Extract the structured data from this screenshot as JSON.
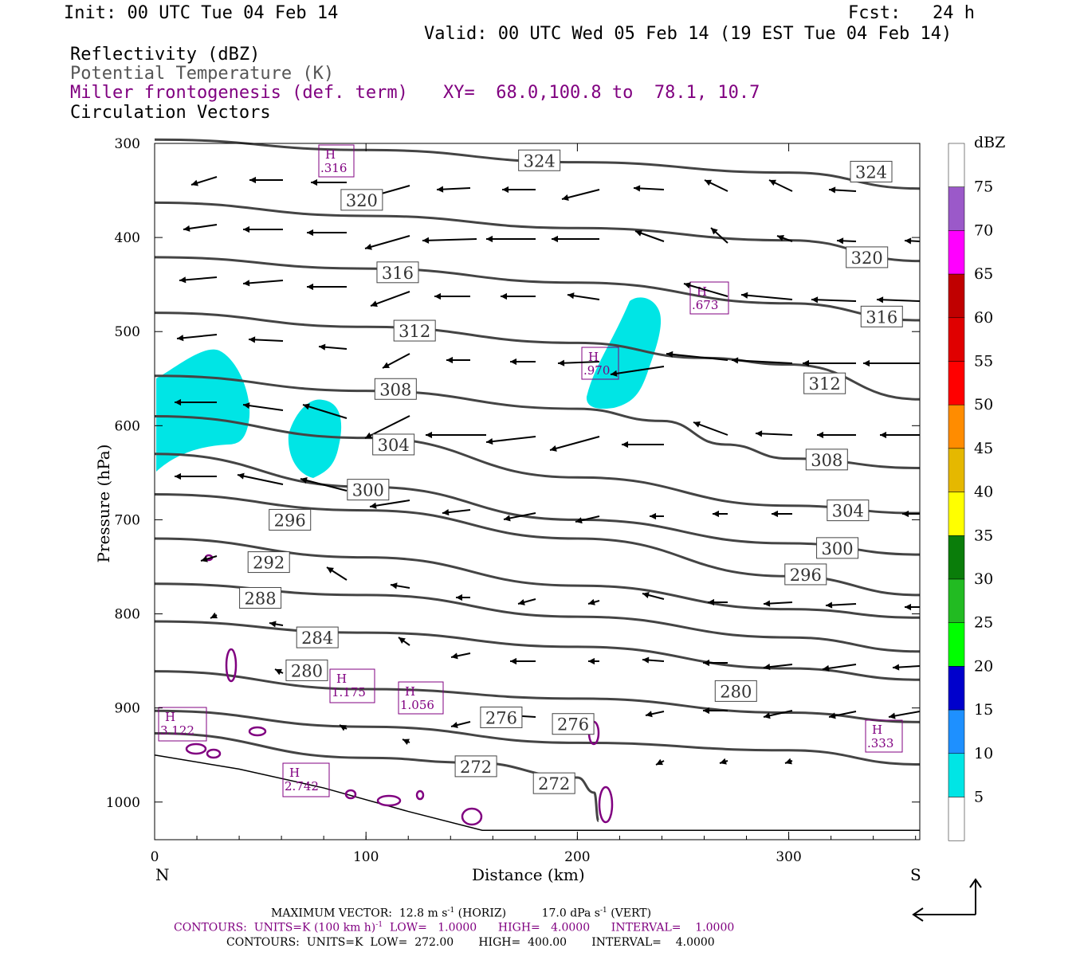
{
  "header": {
    "init": "Init: 00 UTC Tue 04 Feb 14",
    "fcst": "Fcst:   24 h",
    "valid": "Valid: 00 UTC Wed 05 Feb 14 (19 EST Tue 04 Feb 14)",
    "field1": "Reflectivity (dBZ)",
    "field2": "Potential Temperature (K)",
    "field3": "Miller frontogenesis (def. term)",
    "xy": "XY=  68.0,100.8 to  78.1, 10.7",
    "field4": "Circulation Vectors"
  },
  "colors": {
    "theta": "#444444",
    "fronto": "#800080",
    "reflect_5": "#00e5e5",
    "vectors": "#000000"
  },
  "footer": {
    "max_vector_a": "MAXIMUM VECTOR:  12.8 m s",
    "max_vector_b": "(HORIZ)",
    "max_vector_c": "17.0 dPa s",
    "max_vector_d": "(VERT)",
    "contours_fronto_a": "CONTOURS:  UNITS=K (100 km h)",
    "contours_fronto_b": "LOW=   1.0000      HIGH=   4.0000      INTERVAL=    1.0000",
    "contours_theta": "CONTOURS:  UNITS=K  LOW=  272.00       HIGH=  400.00       INTERVAL=    4.0000",
    "superscript": "-1"
  },
  "chart_data": {
    "type": "cross-section",
    "xlabel": "Distance (km)",
    "ylabel": "Pressure (hPa)",
    "xlim": [
      0,
      362
    ],
    "ylim": [
      1040,
      300
    ],
    "x_ticks": [
      0,
      100,
      200,
      300
    ],
    "y_ticks": [
      300,
      400,
      500,
      600,
      700,
      800,
      900,
      1000
    ],
    "x_end_labels": {
      "left": "N",
      "right": "S"
    },
    "colorbar": {
      "title": "dBZ",
      "levels": [
        75,
        70,
        65,
        60,
        55,
        50,
        45,
        40,
        35,
        30,
        25,
        20,
        15,
        10,
        5
      ],
      "colors": [
        "#ffffff",
        "#9b59c9",
        "#ff00ff",
        "#c00000",
        "#e00000",
        "#ff0000",
        "#ff8c00",
        "#e5b800",
        "#ffff00",
        "#0a7d0a",
        "#22bb22",
        "#00ff00",
        "#0000cc",
        "#1e90ff",
        "#00e5e5",
        "#ffffff"
      ]
    },
    "theta_contours": [
      {
        "label": "324",
        "points": [
          [
            0,
            296
          ],
          [
            100,
            307
          ],
          [
            200,
            320
          ],
          [
            300,
            331
          ],
          [
            362,
            348
          ]
        ],
        "labels_at": [
          [
            182,
            318
          ],
          [
            339,
            330
          ]
        ]
      },
      {
        "label": "320",
        "points": [
          [
            0,
            363
          ],
          [
            100,
            377
          ],
          [
            200,
            390
          ],
          [
            300,
            403
          ],
          [
            362,
            425
          ]
        ],
        "labels_at": [
          [
            98,
            360
          ],
          [
            337,
            421
          ]
        ]
      },
      {
        "label": "316",
        "points": [
          [
            0,
            421
          ],
          [
            100,
            433
          ],
          [
            200,
            448
          ],
          [
            300,
            470
          ],
          [
            362,
            488
          ]
        ],
        "labels_at": [
          [
            115,
            437
          ],
          [
            344,
            484
          ]
        ]
      },
      {
        "label": "312",
        "points": [
          [
            0,
            480
          ],
          [
            100,
            495
          ],
          [
            200,
            512
          ],
          [
            260,
            528
          ],
          [
            300,
            535
          ],
          [
            362,
            572
          ]
        ],
        "labels_at": [
          [
            123,
            499
          ],
          [
            317,
            555
          ]
        ]
      },
      {
        "label": "308",
        "points": [
          [
            0,
            547
          ],
          [
            100,
            563
          ],
          [
            200,
            582
          ],
          [
            240,
            595
          ],
          [
            270,
            620
          ],
          [
            300,
            635
          ],
          [
            362,
            645
          ]
        ],
        "labels_at": [
          [
            114,
            561
          ],
          [
            318,
            636
          ]
        ]
      },
      {
        "label": "304",
        "points": [
          [
            0,
            590
          ],
          [
            100,
            613
          ],
          [
            200,
            655
          ],
          [
            300,
            685
          ],
          [
            362,
            693
          ]
        ],
        "labels_at": [
          [
            113,
            620
          ],
          [
            328,
            690
          ]
        ]
      },
      {
        "label": "300",
        "points": [
          [
            0,
            630
          ],
          [
            100,
            665
          ],
          [
            200,
            700
          ],
          [
            300,
            725
          ],
          [
            362,
            737
          ]
        ],
        "labels_at": [
          [
            101,
            668
          ],
          [
            323,
            730
          ]
        ]
      },
      {
        "label": "296",
        "points": [
          [
            0,
            673
          ],
          [
            100,
            690
          ],
          [
            200,
            720
          ],
          [
            300,
            760
          ],
          [
            362,
            780
          ]
        ],
        "labels_at": [
          [
            64,
            700
          ],
          [
            308,
            758
          ]
        ]
      },
      {
        "label": "292",
        "points": [
          [
            0,
            720
          ],
          [
            100,
            740
          ],
          [
            200,
            770
          ],
          [
            300,
            795
          ],
          [
            362,
            804
          ]
        ],
        "labels_at": [
          [
            54,
            745
          ]
        ]
      },
      {
        "label": "288",
        "points": [
          [
            0,
            768
          ],
          [
            100,
            780
          ],
          [
            200,
            803
          ],
          [
            300,
            825
          ],
          [
            362,
            840
          ]
        ],
        "labels_at": [
          [
            50,
            783
          ]
        ]
      },
      {
        "label": "284",
        "points": [
          [
            0,
            808
          ],
          [
            100,
            820
          ],
          [
            200,
            835
          ],
          [
            300,
            858
          ],
          [
            362,
            870
          ]
        ],
        "labels_at": [
          [
            77,
            825
          ]
        ]
      },
      {
        "label": "280",
        "points": [
          [
            0,
            861
          ],
          [
            100,
            880
          ],
          [
            200,
            890
          ],
          [
            300,
            905
          ],
          [
            362,
            915
          ]
        ],
        "labels_at": [
          [
            72,
            860
          ],
          [
            275,
            882
          ]
        ]
      },
      {
        "label": "276",
        "points": [
          [
            0,
            903
          ],
          [
            100,
            920
          ],
          [
            200,
            937
          ],
          [
            300,
            945
          ],
          [
            362,
            960
          ]
        ],
        "labels_at": [
          [
            164,
            910
          ],
          [
            198,
            917
          ]
        ]
      },
      {
        "label": "272",
        "points": [
          [
            0,
            927
          ],
          [
            100,
            953
          ],
          [
            150,
            958
          ],
          [
            200,
            974
          ],
          [
            208,
            990
          ],
          [
            210,
            1020
          ]
        ],
        "labels_at": [
          [
            152,
            962
          ],
          [
            189,
            980
          ]
        ]
      }
    ],
    "fronto_maxima": [
      {
        "label": "H",
        "value": ".316"
      },
      {
        "label": "H",
        "value": ".673"
      },
      {
        "label": "H",
        "value": ".970"
      },
      {
        "label": "H",
        "value": "1.175"
      },
      {
        "label": "H",
        "value": "1.056"
      },
      {
        "label": "H",
        "value": "3.122"
      },
      {
        "label": "H",
        "value": "2.742"
      },
      {
        "label": "H",
        "value": ".333"
      }
    ]
  }
}
